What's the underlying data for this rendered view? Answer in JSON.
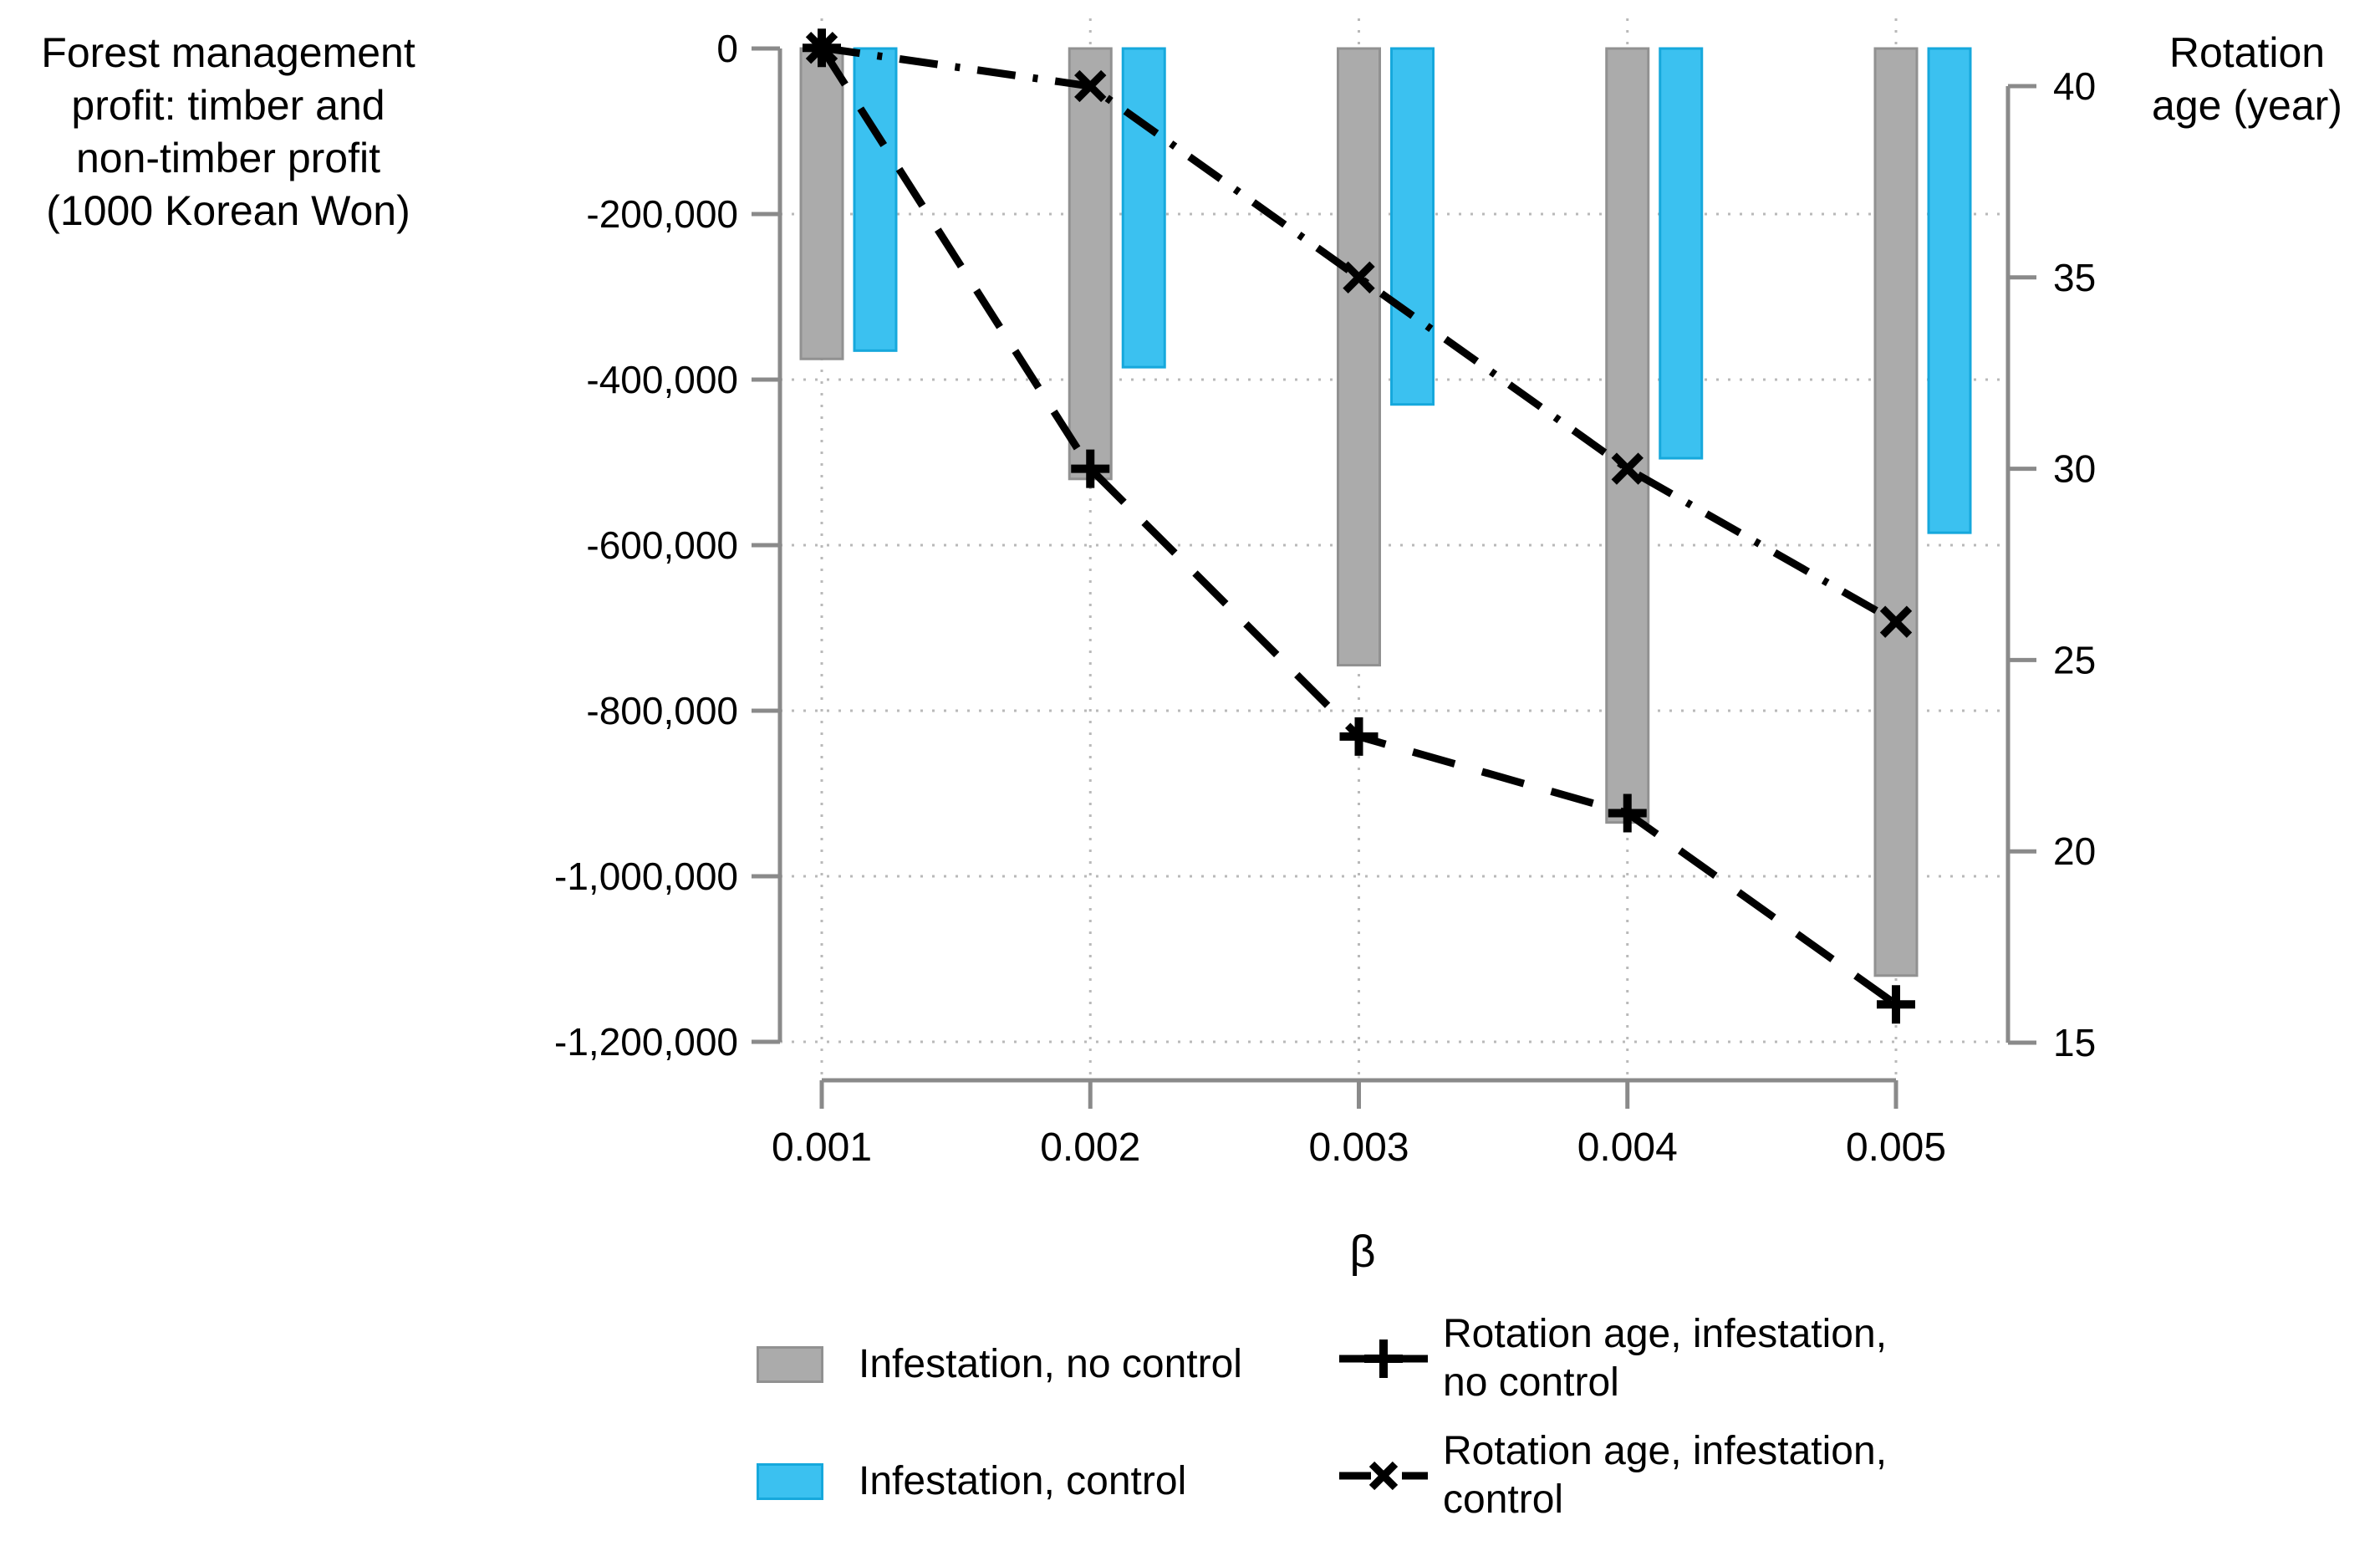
{
  "chart_data": {
    "type": "combo-bar-line",
    "x": [
      0.001,
      0.002,
      0.003,
      0.004,
      0.005
    ],
    "x_tick_labels": [
      "0.001",
      "0.002",
      "0.003",
      "0.004",
      "0.005"
    ],
    "xlabel": "β",
    "left_axis": {
      "title_lines": [
        "Forest management",
        "profit: timber and",
        "non-timber profit",
        "(1000 Korean Won)"
      ],
      "tick_values": [
        0,
        -200000,
        -400000,
        -600000,
        -800000,
        -1000000,
        -1200000
      ],
      "tick_labels": [
        "0",
        "-200,000",
        "-400,000",
        "-600,000",
        "-800,000",
        "-1,000,000",
        "-1,200,000"
      ],
      "range": [
        -1200000,
        0
      ]
    },
    "right_axis": {
      "title_lines": [
        "Rotation",
        "age (year)"
      ],
      "tick_values": [
        40,
        35,
        30,
        25,
        20,
        15
      ],
      "tick_labels": [
        "40",
        "35",
        "30",
        "25",
        "20",
        "15"
      ],
      "range": [
        15,
        41
      ]
    },
    "bar_series": [
      {
        "name": "Infestation, no control",
        "axis": "left",
        "fill_color": "#ababab",
        "border_color": "#919191",
        "values": [
          -375000,
          -520000,
          -745000,
          -935000,
          -1120000
        ]
      },
      {
        "name": "Infestation, control",
        "axis": "left",
        "fill_color": "#3bc1f0",
        "border_color": "#16a8dc",
        "values": [
          -365000,
          -385000,
          -430000,
          -495000,
          -585000
        ]
      }
    ],
    "line_series": [
      {
        "name": "Rotation age, infestation, no control",
        "axis": "right",
        "marker": "plus",
        "dash": "long-dash",
        "color": "#000000",
        "values": [
          41,
          30,
          23,
          21,
          16
        ]
      },
      {
        "name": "Rotation age, infestation, control",
        "axis": "right",
        "marker": "x",
        "dash": "dash-dot",
        "color": "#000000",
        "values": [
          41,
          40,
          35,
          30,
          26
        ]
      }
    ],
    "grid": true,
    "grid_color": "#b9b9b9",
    "axis_color": "#8a8a8a"
  },
  "legend": {
    "bar_items": [
      {
        "label": "Infestation, no control",
        "swatch_color": "#ababab",
        "swatch_border": "#919191"
      },
      {
        "label": "Infestation, control",
        "swatch_color": "#3bc1f0",
        "swatch_border": "#16a8dc"
      }
    ],
    "line_items": [
      {
        "label_lines": [
          "Rotation age, infestation,",
          "no control"
        ],
        "marker": "plus",
        "dash": "long-dash"
      },
      {
        "label_lines": [
          "Rotation age, infestation,",
          "control"
        ],
        "marker": "x",
        "dash": "dash-dot"
      }
    ]
  }
}
